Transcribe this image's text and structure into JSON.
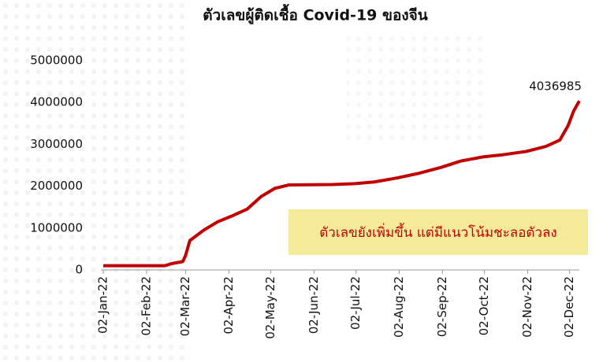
{
  "chart_data": {
    "type": "line",
    "title": "ตัวเลขผู้ติดเชื้อ Covid-19 ของจีน",
    "x": [
      "2022-01-02",
      "2022-02-15",
      "2022-02-20",
      "2022-02-28",
      "2022-03-02",
      "2022-03-05",
      "2022-03-15",
      "2022-03-25",
      "2022-04-05",
      "2022-04-15",
      "2022-04-25",
      "2022-05-05",
      "2022-05-15",
      "2022-06-15",
      "2022-07-01",
      "2022-07-15",
      "2022-08-01",
      "2022-08-15",
      "2022-09-01",
      "2022-09-15",
      "2022-10-01",
      "2022-10-15",
      "2022-11-01",
      "2022-11-15",
      "2022-11-25",
      "2022-12-01",
      "2022-12-05",
      "2022-12-09"
    ],
    "values": [
      100000,
      100000,
      150000,
      200000,
      350000,
      700000,
      950000,
      1150000,
      1300000,
      1450000,
      1750000,
      1950000,
      2030000,
      2040000,
      2060000,
      2100000,
      2200000,
      2300000,
      2450000,
      2600000,
      2700000,
      2750000,
      2830000,
      2950000,
      3100000,
      3450000,
      3800000,
      4036985
    ],
    "color": "#c00000",
    "xlim": [
      "2022-01-02",
      "2022-12-09"
    ],
    "xticks": [
      {
        "value": "2022-01-02",
        "label": "02-Jan-22"
      },
      {
        "value": "2022-02-02",
        "label": "02-Feb-22"
      },
      {
        "value": "2022-03-02",
        "label": "02-Mar-22"
      },
      {
        "value": "2022-04-02",
        "label": "02-Apr-22"
      },
      {
        "value": "2022-05-02",
        "label": "02-May-22"
      },
      {
        "value": "2022-06-02",
        "label": "02-Jun-22"
      },
      {
        "value": "2022-07-02",
        "label": "02-Jul-22"
      },
      {
        "value": "2022-08-02",
        "label": "02-Aug-22"
      },
      {
        "value": "2022-09-02",
        "label": "02-Sep-22"
      },
      {
        "value": "2022-10-02",
        "label": "02-Oct-22"
      },
      {
        "value": "2022-11-02",
        "label": "02-Nov-22"
      },
      {
        "value": "2022-12-02",
        "label": "02-Dec-22"
      }
    ],
    "ylim": [
      0,
      5000000
    ],
    "yticks": [
      0,
      1000000,
      2000000,
      3000000,
      4000000,
      5000000
    ],
    "annotation": "ตัวเลขยังเพิ่มขึ้น แต่มีแนวโน้มชะลอตัวลง"
  }
}
